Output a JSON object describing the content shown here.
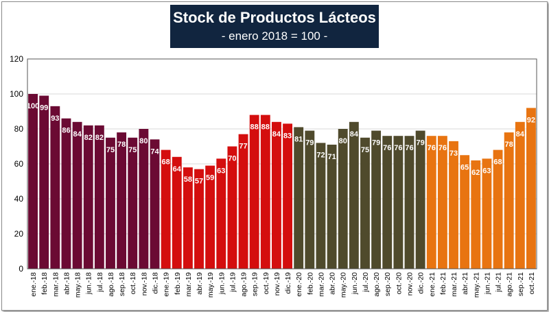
{
  "chart_data": {
    "type": "bar",
    "title": "Stock de Productos Lácteos",
    "subtitle": "- enero 2018 = 100 -",
    "xlabel": "",
    "ylabel": "",
    "ylim": [
      0,
      120
    ],
    "yticks": [
      0,
      20,
      40,
      60,
      80,
      100,
      120
    ],
    "grid": true,
    "legend": "none",
    "colors": {
      "2018": "#6b0a33",
      "2019": "#d40e0e",
      "2020": "#4f4a2c",
      "2021": "#e87411"
    },
    "categories": [
      "ene.-18",
      "feb.-18",
      "mar.-18",
      "abr.-18",
      "may.-18",
      "jun.-18",
      "jul.-18",
      "ago.-18",
      "sep.-18",
      "oct.-18",
      "nov.-18",
      "dic.-18",
      "ene.-19",
      "feb.-19",
      "mar.-19",
      "abr.-19",
      "may.-19",
      "jun.-19",
      "jul.-19",
      "ago.-19",
      "sep.-19",
      "oct.-19",
      "nov.-19",
      "dic.-19",
      "ene.-20",
      "feb.-20",
      "mar.-20",
      "abr.-20",
      "may.-20",
      "jun.-20",
      "jul.-20",
      "ago.-20",
      "sep.-20",
      "oct.-20",
      "nov.-20",
      "dic.-20",
      "ene.-21",
      "feb.-21",
      "mar.-21",
      "abr.-21",
      "may.-21",
      "jun.-21",
      "jul.-21",
      "ago.-21",
      "sep.-21",
      "oct.-21"
    ],
    "years": [
      "2018",
      "2018",
      "2018",
      "2018",
      "2018",
      "2018",
      "2018",
      "2018",
      "2018",
      "2018",
      "2018",
      "2018",
      "2019",
      "2019",
      "2019",
      "2019",
      "2019",
      "2019",
      "2019",
      "2019",
      "2019",
      "2019",
      "2019",
      "2019",
      "2020",
      "2020",
      "2020",
      "2020",
      "2020",
      "2020",
      "2020",
      "2020",
      "2020",
      "2020",
      "2020",
      "2020",
      "2021",
      "2021",
      "2021",
      "2021",
      "2021",
      "2021",
      "2021",
      "2021",
      "2021",
      "2021"
    ],
    "values": [
      100,
      99,
      93,
      86,
      84,
      82,
      82,
      75,
      78,
      75,
      80,
      74,
      68,
      64,
      58,
      57,
      59,
      63,
      70,
      77,
      88,
      88,
      84,
      83,
      81,
      79,
      72,
      71,
      80,
      84,
      75,
      79,
      76,
      76,
      76,
      79,
      76,
      76,
      73,
      65,
      62,
      63,
      68,
      78,
      84,
      92
    ],
    "labels": [
      "100",
      "99",
      "93",
      "86",
      "84",
      "82",
      "82",
      "75",
      "78",
      "75",
      "80",
      "74",
      "68",
      "64",
      "58",
      "57",
      "59",
      "63",
      "70",
      "77",
      "88",
      "88",
      "84",
      "83",
      "81",
      "79",
      "72",
      "71",
      "80",
      "84",
      "75",
      "79",
      "76",
      "76",
      "76",
      "79",
      "76",
      "76",
      "73",
      "65",
      "62",
      "63",
      "68",
      "78",
      "84",
      "92"
    ]
  }
}
